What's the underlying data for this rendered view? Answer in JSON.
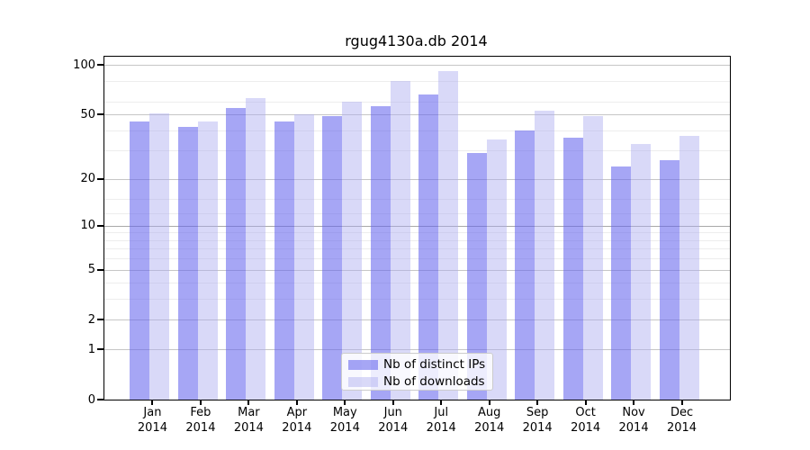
{
  "title": "rgug4130a.db 2014",
  "chart_data": {
    "type": "bar",
    "title": "rgug4130a.db 2014",
    "categories": [
      "Jan",
      "Feb",
      "Mar",
      "Apr",
      "May",
      "Jun",
      "Jul",
      "Aug",
      "Sep",
      "Oct",
      "Nov",
      "Dec"
    ],
    "year": "2014",
    "series": [
      {
        "name": "Nb of distinct IPs",
        "color": "rgba(97,97,237,0.56)",
        "color_hex_over_white": "#a6a6f0",
        "values": [
          45,
          42,
          55,
          45,
          49,
          56,
          66,
          29,
          40,
          36,
          24,
          26
        ]
      },
      {
        "name": "Nb of downloads",
        "color": "rgba(170,170,240,0.45)",
        "color_hex_over_white": "#d9d9f7",
        "values": [
          51,
          45,
          63,
          50,
          60,
          80,
          92,
          35,
          53,
          49,
          33,
          37
        ]
      }
    ],
    "yscale": "log10(1+y)",
    "ylim": [
      0,
      112
    ],
    "ytick_labels": [
      "100",
      "50",
      "20",
      "10",
      "5",
      "2",
      "1",
      "0"
    ],
    "yticks": [
      100,
      50,
      20,
      10,
      5,
      2,
      1,
      0
    ],
    "minor_gridlines": [
      3,
      4,
      6,
      7,
      8,
      9,
      12,
      15,
      30,
      40,
      60,
      80
    ],
    "grid": true,
    "legend_position": "bottom-center",
    "colors": {
      "axis": "#000000",
      "major_grid": "#c6c6c6",
      "major_grid_emphasis": "#a8a8a8",
      "minor_grid": "#ededed",
      "legend_border": "#cccccc"
    }
  }
}
